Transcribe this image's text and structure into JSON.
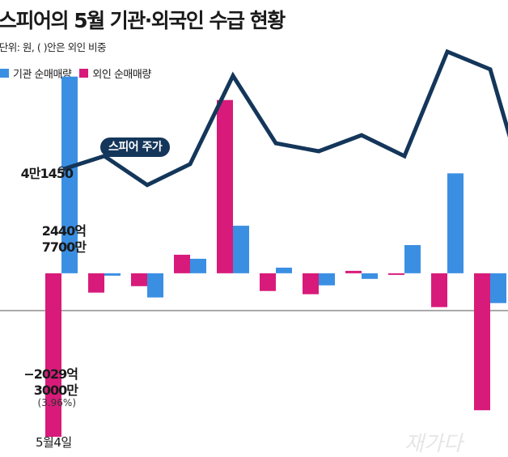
{
  "title": "스피어의 5월 기관·외국인 수급 현황",
  "unit_note": "단위: 원, ( )안은 외인 비중",
  "legend": {
    "institution": "기관 순매매량",
    "foreign": "외인 순매매량"
  },
  "stock_label": "스피어 주가",
  "start_price_label": "4만1450",
  "inst_annotation": {
    "line1": "2440억",
    "line2": "7700만"
  },
  "foreign_annotation": {
    "line1": "−2029억",
    "line2": "3000만",
    "line3": "(3.96%)"
  },
  "x_tick": "5월4일",
  "watermark": "재가다",
  "colors": {
    "institution": "#3b8fe3",
    "foreign": "#d81b7a",
    "price_line": "#14365a",
    "baseline": "#555555"
  },
  "chart_data": {
    "type": "bar+line",
    "x": [
      "5월4일",
      "",
      "",
      "",
      "",
      "",
      "",
      "",
      "",
      "",
      "",
      ""
    ],
    "series": [
      {
        "name": "기관 순매매량",
        "values": [
          244077000000,
          -3000000000,
          -30000000000,
          18000000000,
          59000000000,
          7000000000,
          -15000000000,
          -7000000000,
          35000000000,
          124000000000,
          -37000000000,
          -20000000000
        ]
      },
      {
        "name": "외인 순매매량",
        "values": [
          -202930000000,
          -24000000000,
          -16000000000,
          23000000000,
          215000000000,
          -22000000000,
          -26000000000,
          3000000000,
          -2000000000,
          -42000000000,
          -170000000000,
          -10000000000
        ]
      },
      {
        "name": "스피어 주가",
        "values": [
          41450,
          42300,
          40500,
          41800,
          47300,
          43100,
          42600,
          43600,
          42300,
          48800,
          47700,
          43200
        ]
      }
    ],
    "ylim_volume": [
      -225000000000,
      305000000000
    ],
    "ylim_price": [
      35000,
      50000
    ]
  }
}
